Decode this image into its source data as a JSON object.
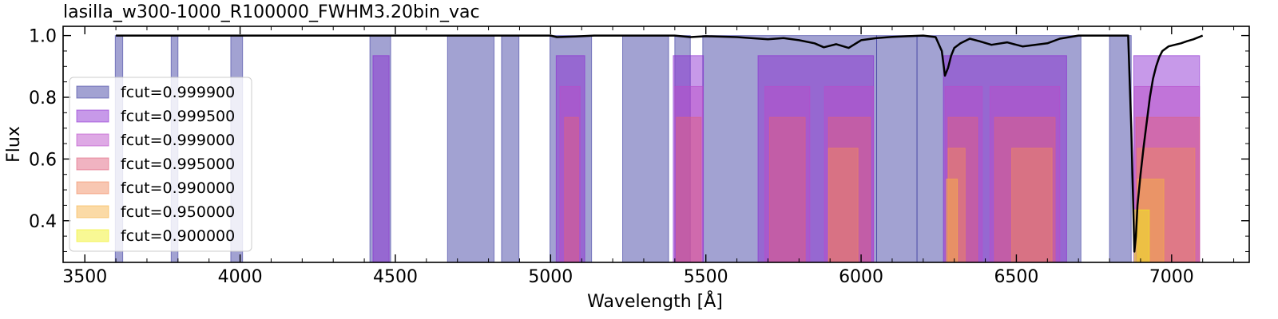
{
  "chart_data": {
    "type": "area",
    "title": "lasilla_w300-1000_R100000_FWHM3.20bin_vac",
    "xlabel": "Wavelength [Å]",
    "ylabel": "Flux",
    "xlim": [
      3430,
      7250
    ],
    "ylim": [
      0.265,
      1.03
    ],
    "x_ticks": [
      3500,
      4000,
      4500,
      5000,
      5500,
      6000,
      6500,
      7000
    ],
    "y_ticks": [
      0.4,
      0.6,
      0.8,
      1.0
    ],
    "x_tick_labels": [
      "3500",
      "4000",
      "4500",
      "5000",
      "5500",
      "6000",
      "6500",
      "7000"
    ],
    "y_tick_labels": [
      "0.4",
      "0.6",
      "0.8",
      "1.0"
    ],
    "legend_position": "left",
    "grid": false,
    "series": [
      {
        "name": "fcut=0.999900",
        "color": "#3c3ca0",
        "y_top": 1.0,
        "ranges": [
          [
            3598,
            3622
          ],
          [
            3778,
            3800
          ],
          [
            3970,
            4008
          ],
          [
            4418,
            4485
          ],
          [
            4668,
            4818
          ],
          [
            4842,
            4898
          ],
          [
            4998,
            5132
          ],
          [
            5232,
            5380
          ],
          [
            5400,
            5450
          ],
          [
            5490,
            6050
          ],
          [
            6050,
            6180
          ],
          [
            6180,
            6708
          ],
          [
            6800,
            6870
          ]
        ]
      },
      {
        "name": "fcut=0.999500",
        "color": "#8a2ad0",
        "y_top": 0.935,
        "ranges": [
          [
            4428,
            4480
          ],
          [
            5018,
            5110
          ],
          [
            5395,
            5492
          ],
          [
            5668,
            6040
          ],
          [
            6265,
            6662
          ],
          [
            6878,
            7090
          ]
        ]
      },
      {
        "name": "fcut=0.999000",
        "color": "#b94bc9",
        "y_top": 0.835,
        "ranges": [
          [
            5030,
            5095
          ],
          [
            5400,
            5490
          ],
          [
            5690,
            5835
          ],
          [
            5882,
            6040
          ],
          [
            6270,
            6390
          ],
          [
            6415,
            6640
          ],
          [
            6880,
            7090
          ]
        ]
      },
      {
        "name": "fcut=0.995000",
        "color": "#e0607d",
        "y_top": 0.735,
        "ranges": [
          [
            5045,
            5090
          ],
          [
            5405,
            5485
          ],
          [
            5705,
            5820
          ],
          [
            5895,
            6030
          ],
          [
            6280,
            6375
          ],
          [
            6430,
            6625
          ],
          [
            6885,
            7090
          ]
        ]
      },
      {
        "name": "fcut=0.990000",
        "color": "#f0895f",
        "y_top": 0.635,
        "ranges": [
          [
            5895,
            5990
          ],
          [
            6280,
            6335
          ],
          [
            6485,
            6615
          ],
          [
            6890,
            7075
          ]
        ]
      },
      {
        "name": "fcut=0.950000",
        "color": "#f7b245",
        "y_top": 0.535,
        "ranges": [
          [
            6275,
            6310
          ],
          [
            6890,
            6975
          ]
        ]
      },
      {
        "name": "fcut=0.900000",
        "color": "#f0f020",
        "y_top": 0.435,
        "ranges": [
          [
            6880,
            6928
          ]
        ]
      }
    ],
    "spectrum": {
      "name": "",
      "color": "#000000",
      "x": [
        3600,
        5000,
        5020,
        5080,
        5140,
        5400,
        5450,
        5500,
        5600,
        5700,
        5750,
        5800,
        5850,
        5880,
        5920,
        5960,
        6000,
        6050,
        6100,
        6150,
        6200,
        6240,
        6260,
        6270,
        6280,
        6290,
        6300,
        6320,
        6350,
        6380,
        6420,
        6470,
        6520,
        6560,
        6600,
        6640,
        6700,
        6860,
        6870,
        6880,
        6885,
        6890,
        6900,
        6910,
        6920,
        6930,
        6940,
        6950,
        6960,
        6970,
        6990,
        7010,
        7030,
        7050,
        7070,
        7100
      ],
      "y": [
        1.0,
        1.0,
        0.995,
        0.997,
        1.0,
        1.0,
        0.995,
        0.998,
        0.995,
        0.988,
        0.992,
        0.985,
        0.975,
        0.962,
        0.972,
        0.96,
        0.985,
        0.992,
        0.996,
        0.998,
        1.0,
        0.995,
        0.95,
        0.87,
        0.895,
        0.935,
        0.96,
        0.975,
        0.99,
        0.982,
        0.97,
        0.978,
        0.965,
        0.97,
        0.975,
        0.99,
        1.0,
        1.0,
        0.7,
        0.3,
        0.35,
        0.45,
        0.55,
        0.64,
        0.72,
        0.8,
        0.86,
        0.9,
        0.93,
        0.95,
        0.965,
        0.97,
        0.975,
        0.982,
        0.988,
        1.0
      ]
    }
  }
}
